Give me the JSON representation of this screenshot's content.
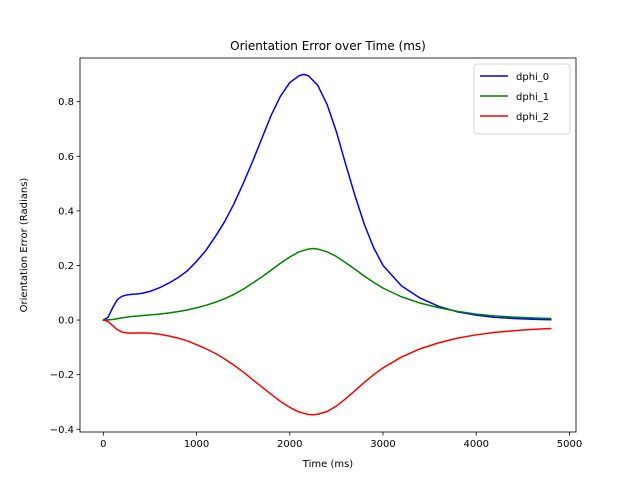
{
  "chart_data": {
    "type": "line",
    "title": "Orientation Error over Time (ms)",
    "xlabel": "Time (ms)",
    "ylabel": "Orientation Error (Radians)",
    "xlim": [
      -250,
      5070
    ],
    "ylim": [
      -0.41,
      0.96
    ],
    "xticks": [
      0,
      1000,
      2000,
      3000,
      4000,
      5000
    ],
    "yticks": [
      -0.4,
      -0.2,
      0.0,
      0.2,
      0.4,
      0.6,
      0.8
    ],
    "xtick_labels": [
      "0",
      "1000",
      "2000",
      "3000",
      "4000",
      "5000"
    ],
    "ytick_labels": [
      "−0.4",
      "−0.2",
      "0.0",
      "0.2",
      "0.4",
      "0.6",
      "0.8"
    ],
    "grid": false,
    "legend_position": "top-right",
    "series": [
      {
        "name": "dphi_0",
        "color": "#0000ff",
        "x": [
          0,
          50,
          100,
          150,
          200,
          250,
          300,
          400,
          500,
          600,
          700,
          800,
          900,
          1000,
          1100,
          1200,
          1300,
          1400,
          1500,
          1600,
          1700,
          1800,
          1900,
          2000,
          2100,
          2150,
          2200,
          2300,
          2400,
          2500,
          2600,
          2700,
          2800,
          2900,
          3000,
          3200,
          3400,
          3600,
          3800,
          4000,
          4200,
          4400,
          4600,
          4800
        ],
        "y": [
          0.0,
          0.01,
          0.045,
          0.075,
          0.087,
          0.092,
          0.094,
          0.097,
          0.105,
          0.118,
          0.135,
          0.155,
          0.18,
          0.215,
          0.255,
          0.305,
          0.36,
          0.425,
          0.5,
          0.58,
          0.665,
          0.75,
          0.82,
          0.87,
          0.895,
          0.9,
          0.895,
          0.86,
          0.79,
          0.69,
          0.57,
          0.455,
          0.35,
          0.265,
          0.2,
          0.125,
          0.08,
          0.05,
          0.03,
          0.018,
          0.01,
          0.006,
          0.003,
          0.001
        ]
      },
      {
        "name": "dphi_1",
        "color": "#008000",
        "x": [
          0,
          100,
          200,
          300,
          400,
          500,
          600,
          700,
          800,
          900,
          1000,
          1100,
          1200,
          1300,
          1400,
          1500,
          1600,
          1700,
          1800,
          1900,
          2000,
          2100,
          2200,
          2250,
          2300,
          2400,
          2500,
          2600,
          2700,
          2800,
          2900,
          3000,
          3200,
          3400,
          3600,
          3800,
          4000,
          4200,
          4400,
          4600,
          4800
        ],
        "y": [
          0.0,
          0.002,
          0.008,
          0.013,
          0.016,
          0.019,
          0.022,
          0.026,
          0.031,
          0.037,
          0.045,
          0.054,
          0.065,
          0.078,
          0.094,
          0.113,
          0.135,
          0.158,
          0.183,
          0.208,
          0.231,
          0.25,
          0.26,
          0.262,
          0.26,
          0.25,
          0.233,
          0.21,
          0.186,
          0.161,
          0.138,
          0.117,
          0.085,
          0.062,
          0.045,
          0.032,
          0.022,
          0.015,
          0.011,
          0.008,
          0.006
        ]
      },
      {
        "name": "dphi_2",
        "color": "#ff0000",
        "x": [
          0,
          50,
          100,
          150,
          200,
          250,
          300,
          400,
          500,
          600,
          700,
          800,
          900,
          1000,
          1100,
          1200,
          1300,
          1400,
          1500,
          1600,
          1700,
          1800,
          1900,
          2000,
          2100,
          2200,
          2250,
          2300,
          2400,
          2500,
          2600,
          2700,
          2800,
          2900,
          3000,
          3200,
          3400,
          3600,
          3800,
          4000,
          4200,
          4400,
          4600,
          4800
        ],
        "y": [
          0.0,
          -0.005,
          -0.02,
          -0.035,
          -0.044,
          -0.047,
          -0.048,
          -0.047,
          -0.048,
          -0.052,
          -0.058,
          -0.066,
          -0.076,
          -0.09,
          -0.105,
          -0.122,
          -0.142,
          -0.165,
          -0.19,
          -0.218,
          -0.245,
          -0.272,
          -0.298,
          -0.32,
          -0.337,
          -0.346,
          -0.347,
          -0.345,
          -0.335,
          -0.315,
          -0.288,
          -0.258,
          -0.228,
          -0.2,
          -0.175,
          -0.135,
          -0.105,
          -0.083,
          -0.066,
          -0.054,
          -0.045,
          -0.039,
          -0.034,
          -0.031
        ]
      }
    ]
  }
}
